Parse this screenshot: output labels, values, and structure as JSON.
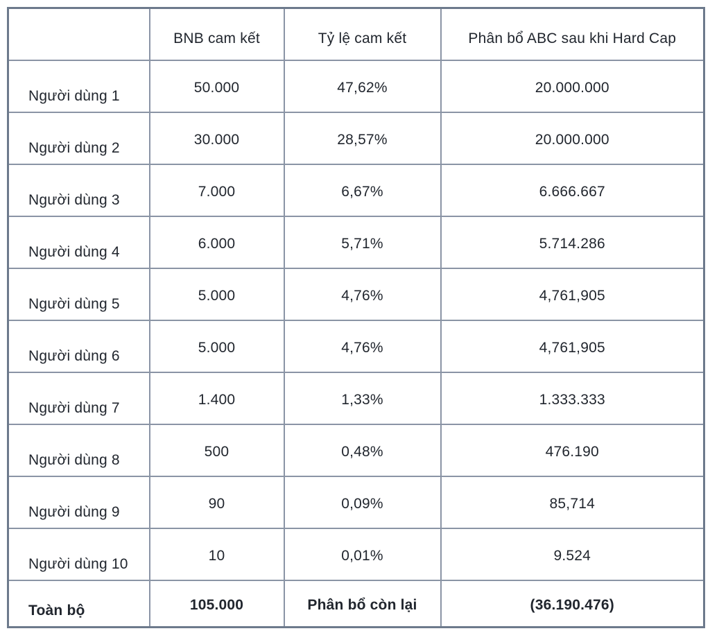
{
  "chart_data": {
    "type": "table",
    "columns": [
      "",
      "BNB cam kết",
      "Tỷ lệ cam kết",
      "Phân bổ ABC sau khi Hard Cap"
    ],
    "rows": [
      [
        "Người dùng 1",
        "50.000",
        "47,62%",
        "20.000.000"
      ],
      [
        "Người dùng 2",
        "30.000",
        "28,57%",
        "20.000.000"
      ],
      [
        "Người dùng 3",
        "7.000",
        "6,67%",
        "6.666.667"
      ],
      [
        "Người dùng 4",
        "6.000",
        "5,71%",
        "5.714.286"
      ],
      [
        "Người dùng 5",
        "5.000",
        "4,76%",
        "4,761,905"
      ],
      [
        "Người dùng 6",
        "5.000",
        "4,76%",
        "4,761,905"
      ],
      [
        "Người dùng 7",
        "1.400",
        "1,33%",
        "1.333.333"
      ],
      [
        "Người dùng 8",
        "500",
        "0,48%",
        "476.190"
      ],
      [
        "Người dùng 9",
        "90",
        "0,09%",
        "85,714"
      ],
      [
        "Người dùng 10",
        "10",
        "0,01%",
        "9.524"
      ]
    ],
    "total_row": [
      "Toàn bộ",
      "105.000",
      "Phân bổ còn lại",
      "(36.190.476)"
    ],
    "layout": {
      "grid": true,
      "header_position": "top"
    }
  },
  "colors": {
    "outer_border": "#6d7a8c",
    "inner_border": "#8a94a5",
    "text": "#21262e",
    "background": "#ffffff"
  }
}
